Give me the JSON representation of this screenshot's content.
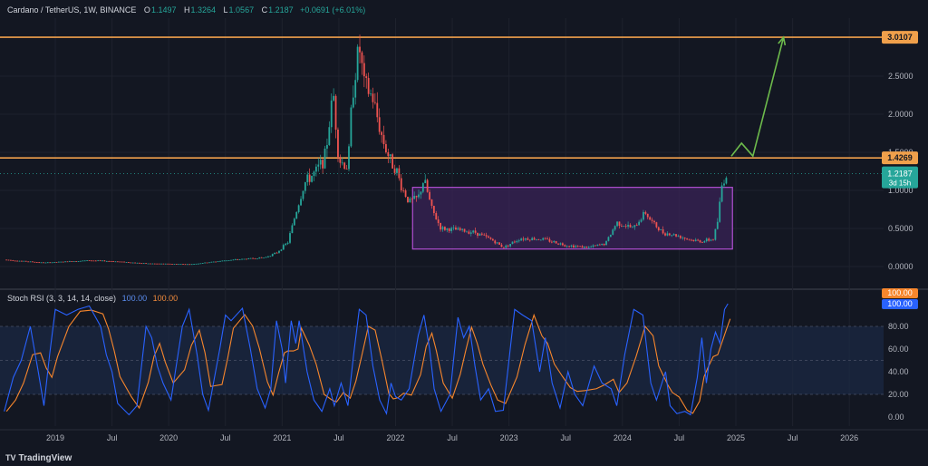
{
  "header": {
    "symbol": "Cardano / TetherUS, 1W, BINANCE",
    "open_label": "O",
    "open": "1.1497",
    "high_label": "H",
    "high": "1.3264",
    "low_label": "L",
    "low": "1.0567",
    "close_label": "C",
    "close": "1.2187",
    "change": "+0.0691 (+6.01%)"
  },
  "indicator": {
    "title": "Stoch RSI (3, 3, 14, 14, close)",
    "k_value": "100.00",
    "d_value": "100.00"
  },
  "branding": {
    "name": "TradingView",
    "logo_text": "TV"
  },
  "colors": {
    "background": "#131722",
    "up": "#26a69a",
    "down": "#ef5350",
    "level_line": "#f0a04b",
    "box_fill": "#3a2357",
    "box_border": "#b04fd1",
    "arrow": "#6dbb4c",
    "stoch_k": "#2962ff",
    "stoch_d": "#f7862c",
    "stoch_band": "#1b2a45"
  },
  "chart_data": [
    {
      "type": "candlestick",
      "title": "Cardano / TetherUS, 1W, BINANCE",
      "y_ticks": [
        "0.0000",
        "0.5000",
        "1.0000",
        "1.5000",
        "2.0000",
        "2.5000"
      ],
      "y_range": [
        -0.1,
        3.2
      ],
      "x_ticks": [
        "2019",
        "Jul",
        "2020",
        "Jul",
        "2021",
        "Jul",
        "2022",
        "Jul",
        "2023",
        "Jul",
        "2024",
        "Jul",
        "2025",
        "Jul",
        "2026"
      ],
      "x_range": [
        2018.55,
        2026.6
      ],
      "price_path": [
        [
          2018.55,
          0.09
        ],
        [
          2018.9,
          0.05
        ],
        [
          2019.3,
          0.08
        ],
        [
          2019.5,
          0.07
        ],
        [
          2019.8,
          0.04
        ],
        [
          2020.2,
          0.03
        ],
        [
          2020.5,
          0.08
        ],
        [
          2020.85,
          0.12
        ],
        [
          2020.95,
          0.18
        ],
        [
          2021.05,
          0.32
        ],
        [
          2021.12,
          0.7
        ],
        [
          2021.2,
          1.1
        ],
        [
          2021.3,
          1.25
        ],
        [
          2021.38,
          1.45
        ],
        [
          2021.45,
          2.3
        ],
        [
          2021.5,
          1.4
        ],
        [
          2021.58,
          1.3
        ],
        [
          2021.62,
          2.3
        ],
        [
          2021.68,
          2.9
        ],
        [
          2021.72,
          2.4
        ],
        [
          2021.8,
          2.2
        ],
        [
          2021.88,
          1.7
        ],
        [
          2021.95,
          1.4
        ],
        [
          2022.0,
          1.3
        ],
        [
          2022.05,
          1.05
        ],
        [
          2022.12,
          0.85
        ],
        [
          2022.2,
          0.9
        ],
        [
          2022.25,
          1.15
        ],
        [
          2022.32,
          0.75
        ],
        [
          2022.4,
          0.5
        ],
        [
          2022.55,
          0.48
        ],
        [
          2022.7,
          0.45
        ],
        [
          2022.85,
          0.35
        ],
        [
          2022.95,
          0.25
        ],
        [
          2023.1,
          0.37
        ],
        [
          2023.3,
          0.36
        ],
        [
          2023.5,
          0.28
        ],
        [
          2023.7,
          0.25
        ],
        [
          2023.85,
          0.3
        ],
        [
          2023.95,
          0.58
        ],
        [
          2024.1,
          0.5
        ],
        [
          2024.2,
          0.72
        ],
        [
          2024.25,
          0.6
        ],
        [
          2024.35,
          0.45
        ],
        [
          2024.5,
          0.4
        ],
        [
          2024.6,
          0.35
        ],
        [
          2024.7,
          0.33
        ],
        [
          2024.8,
          0.36
        ],
        [
          2024.84,
          0.6
        ],
        [
          2024.88,
          1.1
        ],
        [
          2024.92,
          1.2187
        ]
      ],
      "last_price": "1.2187",
      "countdown": "3d 15h",
      "levels": [
        {
          "label": "3.0107",
          "value": 3.0107
        },
        {
          "label": "1.4269",
          "value": 1.4269
        }
      ],
      "range_box": {
        "x0": 2022.15,
        "x1": 2024.97,
        "y0": 0.23,
        "y1": 1.04
      },
      "projection_path": [
        [
          2024.96,
          1.45
        ],
        [
          2025.05,
          1.62
        ],
        [
          2025.15,
          1.45
        ],
        [
          2025.42,
          3.0107
        ]
      ]
    },
    {
      "type": "line",
      "title": "Stoch RSI (3, 3, 14, 14, close)",
      "y_ticks": [
        "0.00",
        "20.00",
        "40.00",
        "60.00",
        "80.00"
      ],
      "y_range": [
        -5,
        108
      ],
      "band": [
        20,
        80
      ],
      "series": [
        {
          "name": "K",
          "value_label": "100.00",
          "values": []
        },
        {
          "name": "D",
          "value_label": "100.00",
          "values": []
        }
      ],
      "stoch_path": [
        [
          2018.55,
          5
        ],
        [
          2018.63,
          35
        ],
        [
          2018.7,
          50
        ],
        [
          2018.78,
          80
        ],
        [
          2018.85,
          40
        ],
        [
          2018.9,
          10
        ],
        [
          2018.95,
          55
        ],
        [
          2019.0,
          95
        ],
        [
          2019.1,
          90
        ],
        [
          2019.2,
          95
        ],
        [
          2019.3,
          98
        ],
        [
          2019.4,
          80
        ],
        [
          2019.45,
          55
        ],
        [
          2019.5,
          40
        ],
        [
          2019.55,
          12
        ],
        [
          2019.65,
          2
        ],
        [
          2019.72,
          10
        ],
        [
          2019.8,
          80
        ],
        [
          2019.85,
          70
        ],
        [
          2019.9,
          45
        ],
        [
          2019.95,
          30
        ],
        [
          2020.02,
          15
        ],
        [
          2020.12,
          80
        ],
        [
          2020.18,
          95
        ],
        [
          2020.25,
          55
        ],
        [
          2020.3,
          20
        ],
        [
          2020.35,
          6
        ],
        [
          2020.45,
          60
        ],
        [
          2020.5,
          90
        ],
        [
          2020.55,
          85
        ],
        [
          2020.65,
          96
        ],
        [
          2020.72,
          60
        ],
        [
          2020.78,
          25
        ],
        [
          2020.85,
          8
        ],
        [
          2020.9,
          25
        ],
        [
          2020.95,
          85
        ],
        [
          2021.0,
          60
        ],
        [
          2021.03,
          30
        ],
        [
          2021.08,
          85
        ],
        [
          2021.12,
          65
        ],
        [
          2021.15,
          85
        ],
        [
          2021.22,
          40
        ],
        [
          2021.28,
          15
        ],
        [
          2021.35,
          5
        ],
        [
          2021.42,
          25
        ],
        [
          2021.46,
          10
        ],
        [
          2021.52,
          30
        ],
        [
          2021.58,
          10
        ],
        [
          2021.63,
          55
        ],
        [
          2021.68,
          95
        ],
        [
          2021.74,
          90
        ],
        [
          2021.8,
          45
        ],
        [
          2021.86,
          15
        ],
        [
          2021.92,
          3
        ],
        [
          2021.96,
          30
        ],
        [
          2022.0,
          18
        ],
        [
          2022.05,
          15
        ],
        [
          2022.12,
          25
        ],
        [
          2022.2,
          72
        ],
        [
          2022.25,
          90
        ],
        [
          2022.3,
          60
        ],
        [
          2022.34,
          25
        ],
        [
          2022.4,
          5
        ],
        [
          2022.48,
          20
        ],
        [
          2022.55,
          88
        ],
        [
          2022.6,
          70
        ],
        [
          2022.65,
          80
        ],
        [
          2022.7,
          45
        ],
        [
          2022.75,
          15
        ],
        [
          2022.82,
          25
        ],
        [
          2022.88,
          5
        ],
        [
          2022.95,
          6
        ],
        [
          2023.05,
          95
        ],
        [
          2023.12,
          90
        ],
        [
          2023.2,
          85
        ],
        [
          2023.27,
          40
        ],
        [
          2023.32,
          70
        ],
        [
          2023.38,
          30
        ],
        [
          2023.45,
          8
        ],
        [
          2023.52,
          40
        ],
        [
          2023.58,
          20
        ],
        [
          2023.65,
          10
        ],
        [
          2023.75,
          45
        ],
        [
          2023.82,
          30
        ],
        [
          2023.9,
          25
        ],
        [
          2023.95,
          10
        ],
        [
          2024.02,
          55
        ],
        [
          2024.1,
          95
        ],
        [
          2024.18,
          90
        ],
        [
          2024.25,
          30
        ],
        [
          2024.3,
          15
        ],
        [
          2024.38,
          40
        ],
        [
          2024.42,
          10
        ],
        [
          2024.48,
          3
        ],
        [
          2024.55,
          5
        ],
        [
          2024.6,
          2
        ],
        [
          2024.66,
          35
        ],
        [
          2024.7,
          70
        ],
        [
          2024.74,
          30
        ],
        [
          2024.78,
          60
        ],
        [
          2024.82,
          75
        ],
        [
          2024.86,
          65
        ],
        [
          2024.9,
          95
        ],
        [
          2024.93,
          100
        ]
      ]
    }
  ]
}
